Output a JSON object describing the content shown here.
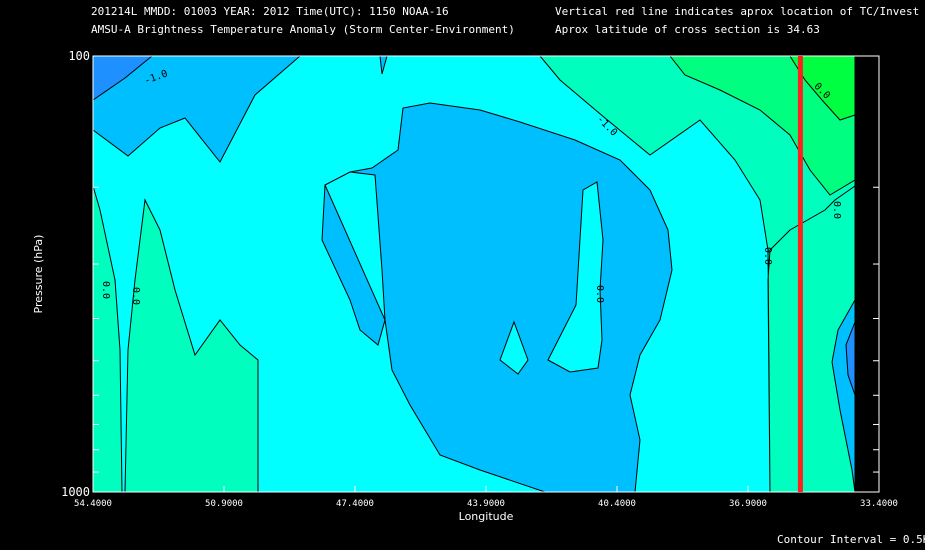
{
  "header": {
    "line1_left": "201214L  MMDD: 01003 YEAR: 2012 Time(UTC): 1150 NOAA-16",
    "line2_left": "AMSU-A Brightness Temperature Anomaly (Storm Center-Environment)",
    "line1_right": "Vertical red line indicates aprox location of TC/Invest",
    "line2_right": "Aprox latitude of cross section is 34.63"
  },
  "footer": {
    "contour_interval": "Contour Interval = 0.5K"
  },
  "colors": {
    "background": "#000000",
    "red_line": "#ff2020",
    "level_-1.5": "#1e90ff",
    "level_-1.0": "#00bfff",
    "level_-0.5": "#00ffff",
    "level_0.0": "#00ffbf",
    "level_0.5": "#00ff80",
    "level_1.0": "#00ff40"
  },
  "chart_data": {
    "type": "contour",
    "xlabel": "Longitude",
    "ylabel": "Pressure (hPa)",
    "x_ticks": [
      "54.4000",
      "50.9000",
      "47.4000",
      "43.9000",
      "40.4000",
      "36.9000",
      "33.4000"
    ],
    "x_tick_values": [
      54.4,
      50.9,
      47.4,
      43.9,
      40.4,
      36.9,
      33.4
    ],
    "xlim": [
      54.4,
      33.4
    ],
    "x_reversed": true,
    "y_ticks": [
      "100",
      "1000"
    ],
    "y_tick_values": [
      100,
      1000
    ],
    "ylim": [
      1000,
      100
    ],
    "y_scale": "log",
    "contour_labels": [
      "-1.0",
      "-1.0",
      "0.0",
      "0.0",
      "0.0",
      "0.0",
      "0.0",
      "0.0",
      "-1.0"
    ],
    "contour_interval": 0.5,
    "storm_longitude": 35.5,
    "storm_line_color": "#ff2020"
  }
}
